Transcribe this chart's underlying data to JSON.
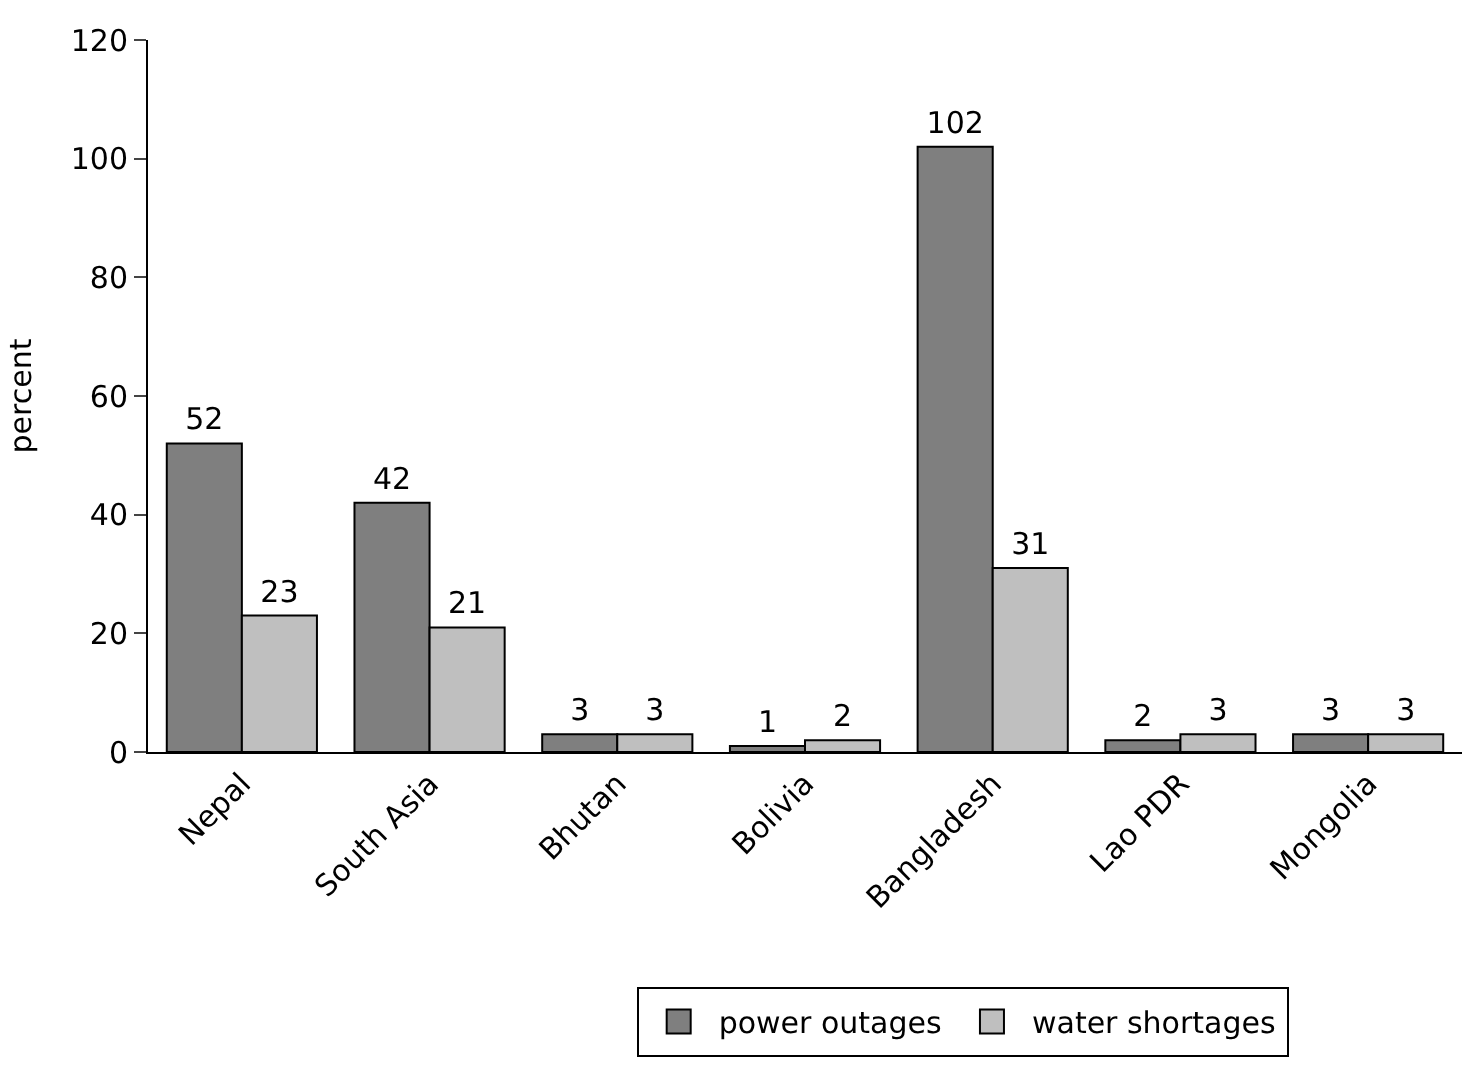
{
  "chart_data": {
    "type": "bar",
    "ylabel": "percent",
    "categories": [
      "Nepal",
      "South Asia",
      "Bhutan",
      "Bolivia",
      "Bangladesh",
      "Lao PDR",
      "Mongolia"
    ],
    "series": [
      {
        "name": "power outages",
        "color": "#7f7f7f",
        "values": [
          52,
          42,
          3,
          1,
          102,
          2,
          3
        ]
      },
      {
        "name": "water shortages",
        "color": "#bfbfbf",
        "values": [
          23,
          21,
          3,
          2,
          31,
          3,
          3
        ]
      }
    ],
    "ylim": [
      0,
      120
    ],
    "yticks": [
      0,
      20,
      40,
      60,
      80,
      100,
      120
    ],
    "data_labels": true,
    "legend": "bottom"
  }
}
